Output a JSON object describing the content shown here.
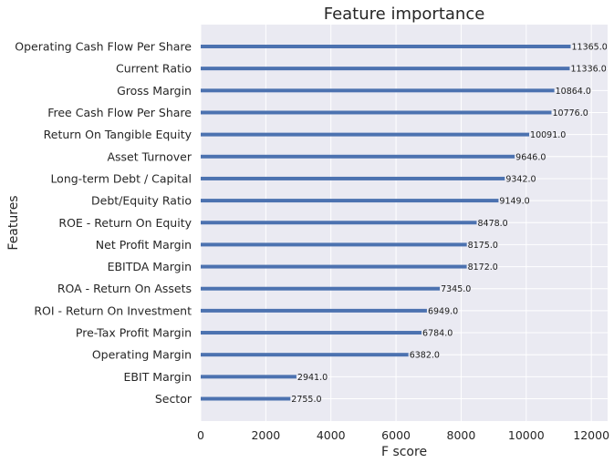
{
  "chart_data": {
    "type": "bar",
    "orientation": "horizontal",
    "title": "Feature importance",
    "xlabel": "F score",
    "ylabel": "Features",
    "xlim": [
      0,
      12500
    ],
    "xticks": [
      0,
      2000,
      4000,
      6000,
      8000,
      10000,
      12000
    ],
    "grid": true,
    "colors": {
      "bar": "#4c72b0",
      "background": "#eaeaf2",
      "grid": "#ffffff"
    },
    "categories": [
      "Operating Cash Flow Per Share",
      "Current Ratio",
      "Gross Margin",
      "Free Cash Flow Per Share",
      "Return On Tangible Equity",
      "Asset Turnover",
      "Long-term Debt / Capital",
      "Debt/Equity Ratio",
      "ROE - Return On Equity",
      "Net Profit Margin",
      "EBITDA Margin",
      "ROA - Return On Assets",
      "ROI - Return On Investment",
      "Pre-Tax Profit Margin",
      "Operating Margin",
      "EBIT Margin",
      "Sector"
    ],
    "values": [
      11365,
      11336,
      10864,
      10776,
      10091,
      9646,
      9342,
      9149,
      8478,
      8175,
      8172,
      7345,
      6949,
      6784,
      6382,
      2941,
      2755
    ],
    "value_labels": [
      "11365.0",
      "11336.0",
      "10864.0",
      "10776.0",
      "10091.0",
      "9646.0",
      "9342.0",
      "9149.0",
      "8478.0",
      "8175.0",
      "8172.0",
      "7345.0",
      "6949.0",
      "6784.0",
      "6382.0",
      "2941.0",
      "2755.0"
    ]
  }
}
